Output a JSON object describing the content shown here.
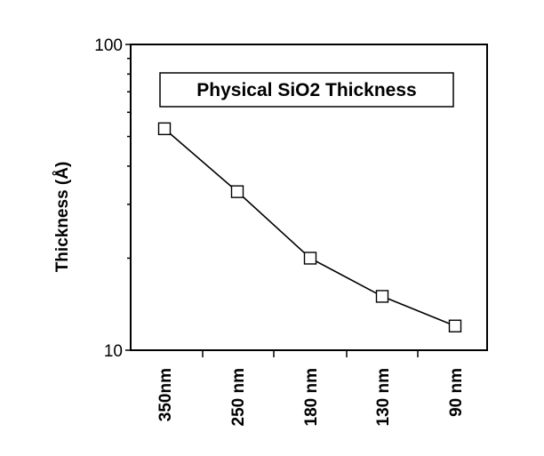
{
  "chart_data": {
    "type": "line",
    "title": "Physical SiO2 Thickness",
    "ylabel": "Thickness (Å)",
    "xlabel": "",
    "yscale": "log",
    "ylim": [
      10,
      100
    ],
    "yticks": [
      {
        "value": 10,
        "label": "10"
      },
      {
        "value": 100,
        "label": "100"
      }
    ],
    "categories": [
      "350nm",
      "250 nm",
      "180 nm",
      "130 nm",
      "90 nm"
    ],
    "series": [
      {
        "values": [
          53,
          33,
          20,
          15,
          12
        ]
      }
    ],
    "marker": "square-open",
    "grid": false,
    "legend": "none"
  }
}
